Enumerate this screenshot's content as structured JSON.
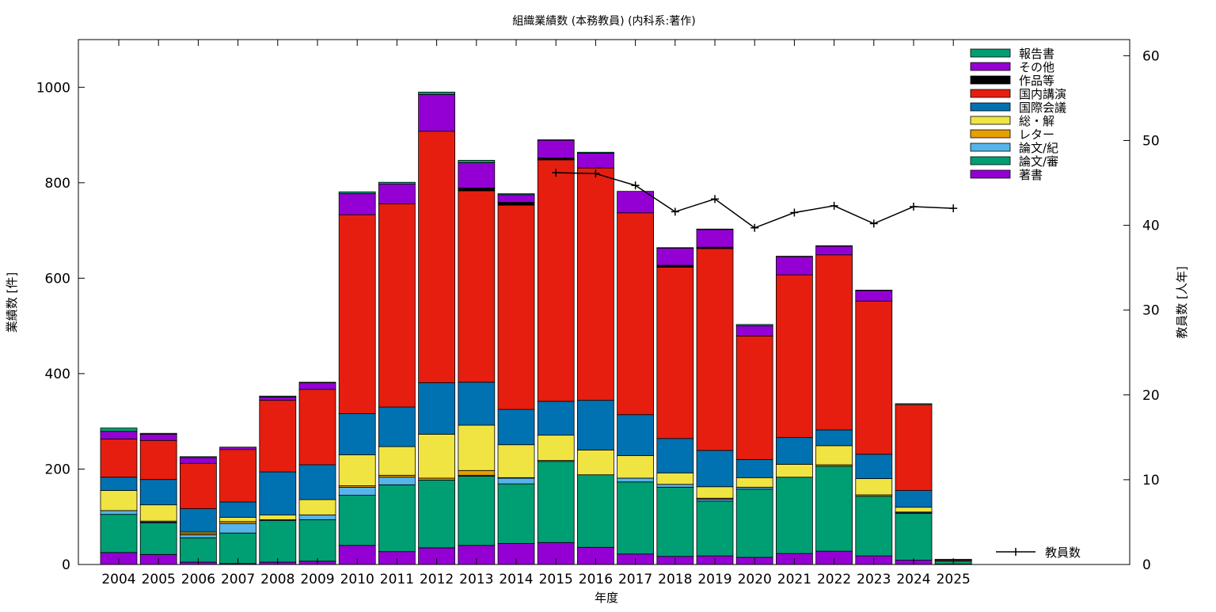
{
  "chart_data": {
    "type": "bar",
    "stacked": true,
    "title": "組織業績数 (本務教員) (内科系:著作)",
    "xlabel": "年度",
    "ylabel": "業績数 [件]",
    "y2label": "教員数 [人年]",
    "ylim": [
      0,
      1100
    ],
    "y2lim": [
      0,
      61.9
    ],
    "yticks": [
      0,
      200,
      400,
      600,
      800,
      1000
    ],
    "y2ticks": [
      0,
      10,
      20,
      30,
      40,
      50,
      60
    ],
    "grid": false,
    "legend_position": "top-right",
    "categories": [
      "2004",
      "2005",
      "2006",
      "2007",
      "2008",
      "2009",
      "2010",
      "2011",
      "2012",
      "2013",
      "2014",
      "2015",
      "2016",
      "2017",
      "2018",
      "2019",
      "2020",
      "2021",
      "2022",
      "2023",
      "2024",
      "2025"
    ],
    "series": [
      {
        "name": "著書",
        "color": "#9400d3",
        "values": [
          25,
          21,
          5,
          2,
          5,
          7,
          40,
          27,
          35,
          40,
          44,
          46,
          36,
          22,
          17,
          18,
          15,
          23,
          28,
          18,
          9,
          1
        ]
      },
      {
        "name": "論文/審",
        "color": "#009e73",
        "values": [
          80,
          66,
          51,
          64,
          87,
          87,
          105,
          140,
          142,
          145,
          125,
          170,
          152,
          151,
          145,
          115,
          143,
          160,
          178,
          125,
          98,
          6
        ]
      },
      {
        "name": "論文/紀",
        "color": "#56b4e9",
        "values": [
          8,
          2,
          6,
          20,
          2,
          10,
          17,
          16,
          0,
          2,
          12,
          0,
          0,
          8,
          6,
          4,
          4,
          0,
          0,
          0,
          2,
          0
        ]
      },
      {
        "name": "レター",
        "color": "#e69f00",
        "values": [
          0,
          2,
          3,
          4,
          0,
          0,
          3,
          4,
          4,
          10,
          1,
          2,
          0,
          0,
          0,
          2,
          0,
          0,
          3,
          3,
          1,
          0
        ]
      },
      {
        "name": "総・解",
        "color": "#f0e442",
        "values": [
          42,
          34,
          3,
          9,
          10,
          32,
          65,
          60,
          92,
          95,
          69,
          53,
          52,
          47,
          24,
          24,
          20,
          27,
          40,
          34,
          10,
          0
        ]
      },
      {
        "name": "国際会議",
        "color": "#0072b2",
        "values": [
          28,
          53,
          49,
          32,
          90,
          73,
          86,
          83,
          108,
          90,
          74,
          71,
          104,
          86,
          72,
          76,
          38,
          56,
          33,
          51,
          35,
          0
        ]
      },
      {
        "name": "国内講演",
        "color": "#e51e10",
        "values": [
          80,
          82,
          95,
          110,
          150,
          158,
          417,
          426,
          527,
          401,
          428,
          506,
          487,
          423,
          359,
          423,
          259,
          341,
          367,
          321,
          180,
          2
        ]
      },
      {
        "name": "作品等",
        "color": "#000000",
        "values": [
          0,
          0,
          0,
          0,
          0,
          0,
          0,
          0,
          0,
          6,
          6,
          4,
          0,
          0,
          4,
          3,
          0,
          0,
          0,
          0,
          0,
          0
        ]
      },
      {
        "name": "その他",
        "color": "#9400d3",
        "values": [
          16,
          13,
          12,
          5,
          7,
          14,
          44,
          41,
          77,
          53,
          16,
          37,
          31,
          45,
          36,
          37,
          21,
          38,
          18,
          22,
          0,
          0
        ]
      },
      {
        "name": "報告書",
        "color": "#009e73",
        "values": [
          7,
          2,
          2,
          0,
          2,
          1,
          4,
          4,
          5,
          5,
          2,
          1,
          2,
          0,
          1,
          1,
          3,
          1,
          1,
          1,
          2,
          2
        ]
      }
    ],
    "line_series": {
      "name": "教員数",
      "color": "#000000",
      "axis": "y2",
      "categories": [
        "2015",
        "2016",
        "2017",
        "2018",
        "2019",
        "2020",
        "2021",
        "2022",
        "2023",
        "2024",
        "2025"
      ],
      "values": [
        46.2,
        46.1,
        44.7,
        41.6,
        43.1,
        39.7,
        41.5,
        42.3,
        40.2,
        42.2,
        42.0
      ]
    }
  }
}
